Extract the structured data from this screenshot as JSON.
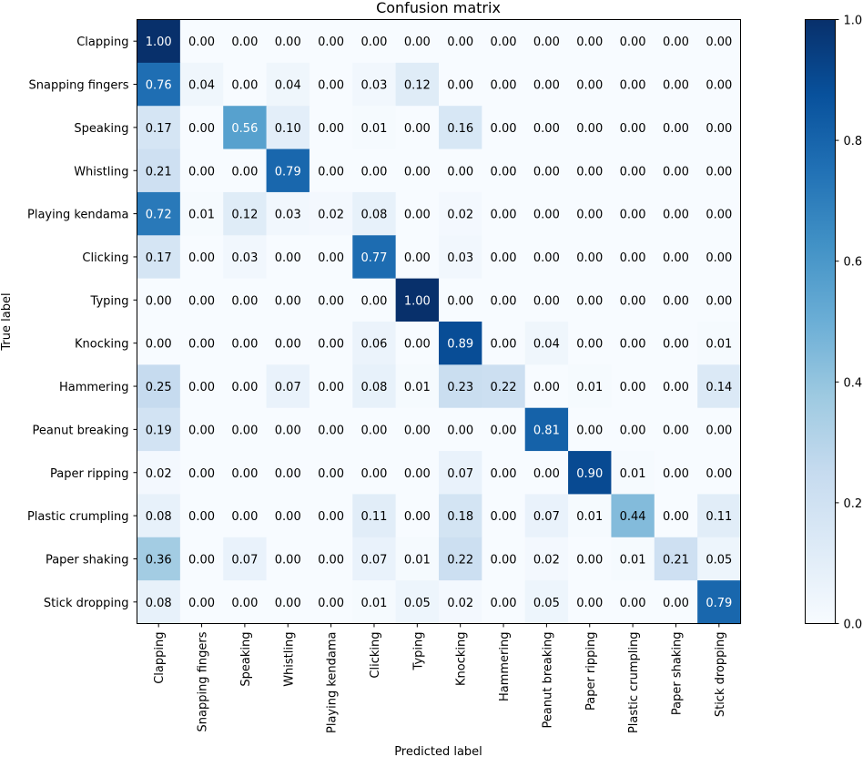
{
  "chart_data": {
    "type": "heatmap",
    "title": "Confusion matrix",
    "xlabel": "Predicted label",
    "ylabel": "True label",
    "labels": [
      "Clapping",
      "Snapping fingers",
      "Speaking",
      "Whistling",
      "Playing kendama",
      "Clicking",
      "Typing",
      "Knocking",
      "Hammering",
      "Peanut breaking",
      "Paper ripping",
      "Plastic crumpling",
      "Paper shaking",
      "Stick dropping"
    ],
    "value_labels": [
      [
        "1.00",
        "0.00",
        "0.00",
        "0.00",
        "0.00",
        "0.00",
        "0.00",
        "0.00",
        "0.00",
        "0.00",
        "0.00",
        "0.00",
        "0.00",
        "0.00"
      ],
      [
        "0.76",
        "0.04",
        "0.00",
        "0.04",
        "0.00",
        "0.03",
        "0.12",
        "0.00",
        "0.00",
        "0.00",
        "0.00",
        "0.00",
        "0.00",
        "0.00"
      ],
      [
        "0.17",
        "0.00",
        "0.56",
        "0.10",
        "0.00",
        "0.01",
        "0.00",
        "0.16",
        "0.00",
        "0.00",
        "0.00",
        "0.00",
        "0.00",
        "0.00"
      ],
      [
        "0.21",
        "0.00",
        "0.00",
        "0.79",
        "0.00",
        "0.00",
        "0.00",
        "0.00",
        "0.00",
        "0.00",
        "0.00",
        "0.00",
        "0.00",
        "0.00"
      ],
      [
        "0.72",
        "0.01",
        "0.12",
        "0.03",
        "0.02",
        "0.08",
        "0.00",
        "0.02",
        "0.00",
        "0.00",
        "0.00",
        "0.00",
        "0.00",
        "0.00"
      ],
      [
        "0.17",
        "0.00",
        "0.03",
        "0.00",
        "0.00",
        "0.77",
        "0.00",
        "0.03",
        "0.00",
        "0.00",
        "0.00",
        "0.00",
        "0.00",
        "0.00"
      ],
      [
        "0.00",
        "0.00",
        "0.00",
        "0.00",
        "0.00",
        "0.00",
        "1.00",
        "0.00",
        "0.00",
        "0.00",
        "0.00",
        "0.00",
        "0.00",
        "0.00"
      ],
      [
        "0.00",
        "0.00",
        "0.00",
        "0.00",
        "0.00",
        "0.06",
        "0.00",
        "0.89",
        "0.00",
        "0.04",
        "0.00",
        "0.00",
        "0.00",
        "0.01"
      ],
      [
        "0.25",
        "0.00",
        "0.00",
        "0.07",
        "0.00",
        "0.08",
        "0.01",
        "0.23",
        "0.22",
        "0.00",
        "0.01",
        "0.00",
        "0.00",
        "0.14"
      ],
      [
        "0.19",
        "0.00",
        "0.00",
        "0.00",
        "0.00",
        "0.00",
        "0.00",
        "0.00",
        "0.00",
        "0.81",
        "0.00",
        "0.00",
        "0.00",
        "0.00"
      ],
      [
        "0.02",
        "0.00",
        "0.00",
        "0.00",
        "0.00",
        "0.00",
        "0.00",
        "0.07",
        "0.00",
        "0.00",
        "0.90",
        "0.01",
        "0.00",
        "0.00"
      ],
      [
        "0.08",
        "0.00",
        "0.00",
        "0.00",
        "0.00",
        "0.11",
        "0.00",
        "0.18",
        "0.00",
        "0.07",
        "0.01",
        "0.44",
        "0.00",
        "0.11"
      ],
      [
        "0.36",
        "0.00",
        "0.07",
        "0.00",
        "0.00",
        "0.07",
        "0.01",
        "0.22",
        "0.00",
        "0.02",
        "0.00",
        "0.01",
        "0.21",
        "0.05"
      ],
      [
        "0.08",
        "0.00",
        "0.00",
        "0.00",
        "0.00",
        "0.01",
        "0.05",
        "0.02",
        "0.00",
        "0.05",
        "0.00",
        "0.00",
        "0.00",
        "0.79"
      ]
    ],
    "colormap": "Blues",
    "colorbar": {
      "range": [
        0.0,
        1.0
      ],
      "ticks": [
        0.0,
        0.2,
        0.4,
        0.6,
        0.8,
        1.0
      ],
      "tick_labels": [
        "0.0",
        "0.2",
        "0.4",
        "0.6",
        "0.8",
        "1.0"
      ]
    },
    "grid": false,
    "legend": "colorbar-right"
  },
  "colors": {
    "blues": [
      "#f7fbff",
      "#deebf7",
      "#c6dbef",
      "#9ecae1",
      "#6baed6",
      "#4292c6",
      "#2171b5",
      "#08519c",
      "#08306b"
    ],
    "text_dark": "#000000",
    "text_light": "#ffffff"
  }
}
